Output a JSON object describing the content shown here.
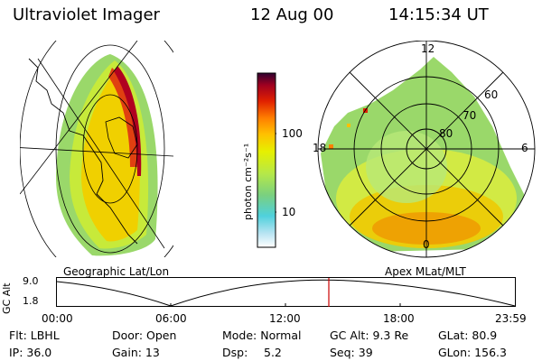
{
  "header": {
    "instrument": "Ultraviolet Imager",
    "date": "12 Aug 00",
    "time": "14:15:34 UT"
  },
  "geo_panel": {
    "caption": "Geographic Lat/Lon"
  },
  "mlt_panel": {
    "caption": "Apex MLat/MLT",
    "mlt_labels": {
      "top": "12",
      "bottom": "0",
      "left": "18",
      "right": "6"
    },
    "lat_labels": [
      "60",
      "70",
      "80"
    ]
  },
  "colorbar": {
    "unit_label": "photon cm⁻²s⁻¹",
    "ticks": [
      "100",
      "10"
    ],
    "colors": [
      "#ffffff",
      "#b8e4f2",
      "#4fd1dc",
      "#7ad07f",
      "#b4e84a",
      "#e6f000",
      "#ffc000",
      "#ff8000",
      "#e02000",
      "#a00020",
      "#300030"
    ]
  },
  "altitude_strip": {
    "axis_label": "GC Alt",
    "y_ticks": [
      "9.0",
      "1.8"
    ],
    "time_ticks": [
      "00:00",
      "06:00",
      "12:00",
      "18:00",
      "23:59"
    ],
    "current_marker_time": "14:15",
    "marker_color": "#cc0000"
  },
  "status": {
    "flt": "Flt: LBHL",
    "door": "Door: Open",
    "mode": "Mode: Normal",
    "gc_alt": "GC Alt: 9.3 Re",
    "glat": "GLat:  80.9",
    "ip": "IP: 36.0",
    "gain": "Gain: 13",
    "dsp_label": "Dsp:",
    "dsp_value": "5.2",
    "seq": "Seq: 39",
    "glon": "GLon: 156.3"
  }
}
